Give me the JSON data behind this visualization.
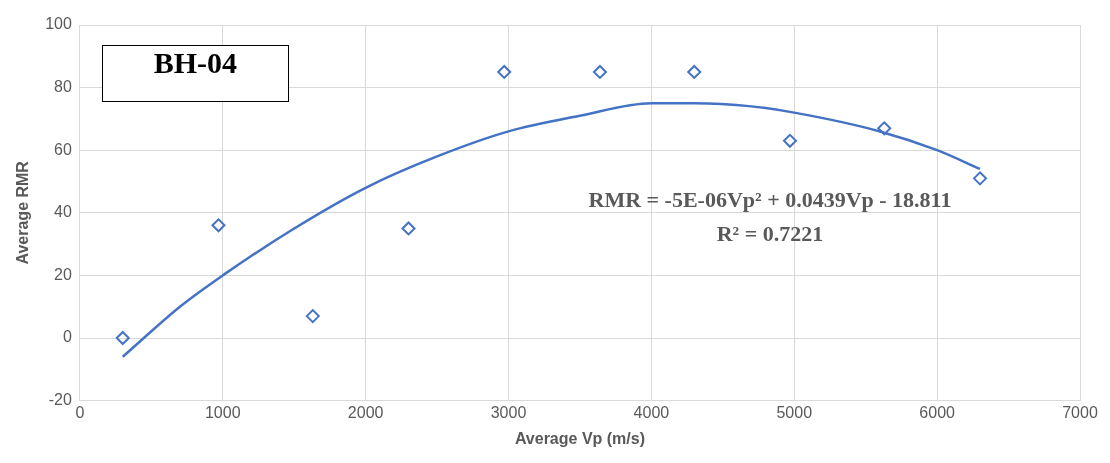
{
  "chart_data": {
    "type": "scatter",
    "xlabel": "Average Vp (m/s)",
    "ylabel": "Average RMR",
    "annotations": [
      "BH-04",
      "RMR = -5E-06Vp² + 0.0439Vp - 18.811",
      "R² = 0.7221"
    ],
    "xlim": [
      0,
      7000
    ],
    "xticks": [
      0,
      1000,
      2000,
      3000,
      4000,
      5000,
      6000,
      7000
    ],
    "ylim": [
      -20,
      100
    ],
    "yticks": [
      -20,
      0,
      20,
      40,
      60,
      80,
      100
    ],
    "grid": true,
    "legend": false,
    "marker": "diamond",
    "series": [
      {
        "color": "#4472c4",
        "x": [
          300,
          970,
          1630,
          2300,
          2970,
          3640,
          4300,
          4970,
          5630,
          6300
        ],
        "values": [
          0,
          36,
          7,
          35,
          85,
          85,
          85,
          63,
          67,
          51
        ]
      },
      {
        "type": "line",
        "color": "#4472c4",
        "marker": "none",
        "line_style": "solid",
        "x": [
          300,
          700,
          1000,
          1500,
          2000,
          2500,
          3000,
          3500,
          4000,
          4300,
          4700,
          5000,
          5600,
          6000,
          6300
        ],
        "values": [
          -6,
          10,
          20,
          35,
          48,
          58,
          66,
          71,
          75,
          75,
          74,
          72,
          66,
          60,
          54
        ]
      }
    ]
  }
}
